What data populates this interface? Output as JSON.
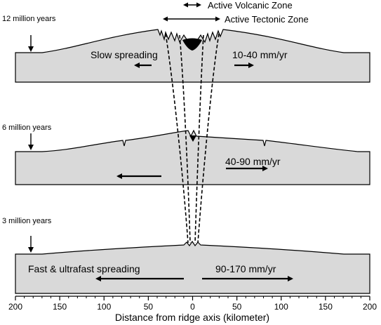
{
  "zones": {
    "volcanic": "Active Volcanic Zone",
    "tectonic": "Active Tectonic Zone"
  },
  "panels": [
    {
      "age": "12 million years",
      "spreading_label": "Slow spreading",
      "rate": "10-40 mm/yr"
    },
    {
      "age": "6 million years",
      "spreading_label": "",
      "rate": "40-90 mm/yr"
    },
    {
      "age": "3 million years",
      "spreading_label": "Fast & ultrafast spreading",
      "rate": "90-170 mm/yr"
    }
  ],
  "axis": {
    "title": "Distance from ridge axis (kilometer)",
    "ticks": [
      "200",
      "150",
      "100",
      "50",
      "0",
      "50",
      "100",
      "150",
      "200"
    ]
  }
}
